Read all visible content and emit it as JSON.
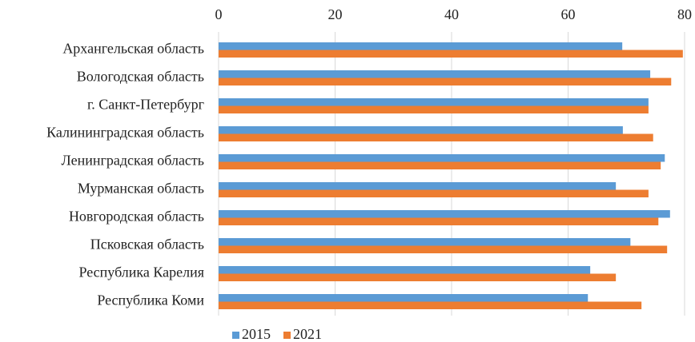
{
  "chart_data": {
    "type": "hbar",
    "categories": [
      "Архангельская область",
      "Вологодская область",
      "г. Санкт-Петербург",
      "Калининградская область",
      "Ленинградская область",
      "Мурманская область",
      "Новгородская область",
      "Псковская область",
      "Республика Карелия",
      "Республика Коми"
    ],
    "series": [
      {
        "name": "2015",
        "color": "#5b9bd5",
        "values": [
          69.3,
          74.1,
          73.8,
          69.4,
          76.6,
          68.2,
          77.5,
          70.7,
          63.8,
          63.4
        ]
      },
      {
        "name": "2021",
        "color": "#ed7d31",
        "values": [
          79.7,
          77.7,
          73.8,
          74.6,
          75.9,
          73.8,
          75.5,
          77.0,
          68.2,
          72.6
        ]
      }
    ],
    "xlim": [
      0,
      80
    ],
    "xticks": [
      0,
      20,
      40,
      60,
      80
    ],
    "grid": true,
    "legend": "bottom"
  }
}
